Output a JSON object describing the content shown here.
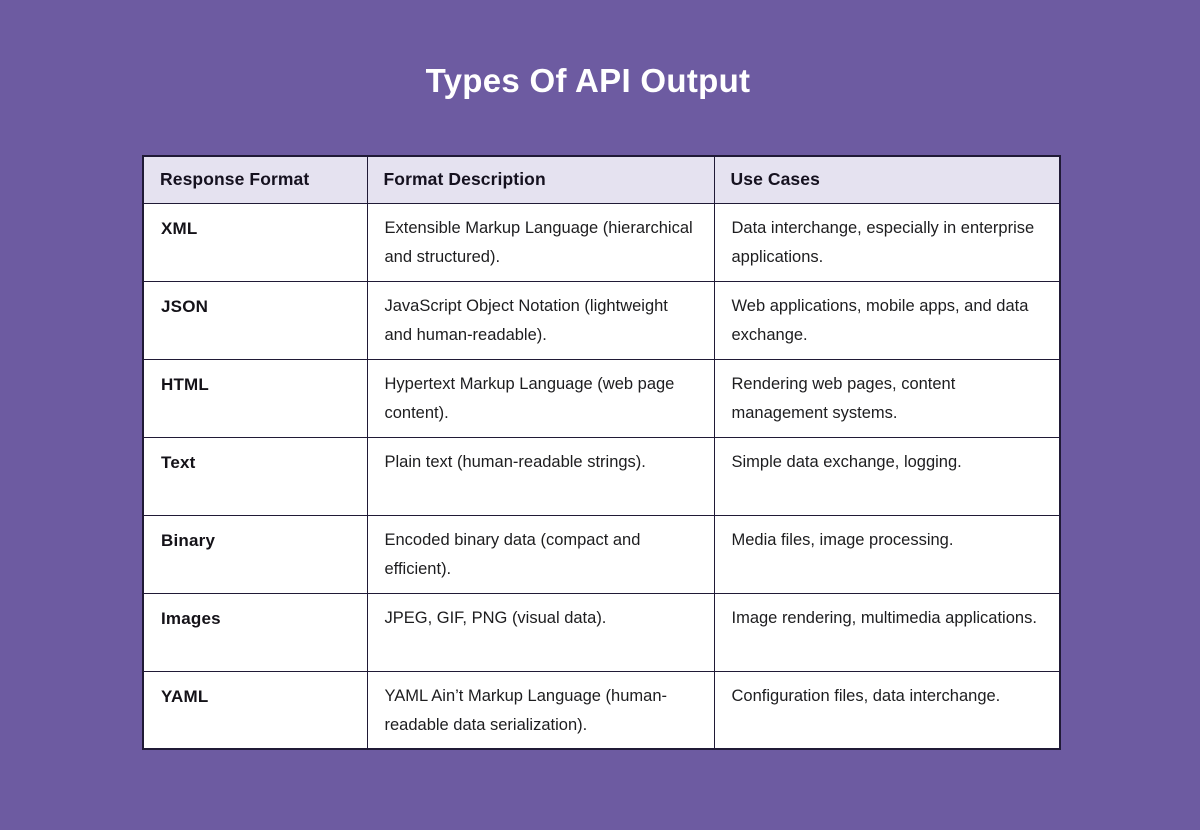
{
  "page": {
    "title": "Types Of API Output",
    "background_color": "#6d5ba1",
    "title_color": "#ffffff"
  },
  "table": {
    "colors": {
      "header_bg": "#e5e2f0",
      "body_bg": "#ffffff",
      "border": "#201a36",
      "header_text": "#15111f",
      "body_text": "#1d1d1f"
    },
    "headers": [
      "Response Format",
      "Format Description",
      "Use Cases"
    ],
    "rows": [
      {
        "format": "XML",
        "description": "Extensible Markup Language (hierarchical and structured).",
        "use_cases": "Data interchange, especially in enterprise applications."
      },
      {
        "format": "JSON",
        "description": "JavaScript Object Notation (lightweight and human-readable).",
        "use_cases": "Web applications, mobile apps, and data exchange."
      },
      {
        "format": "HTML",
        "description": "Hypertext Markup Language (web page content).",
        "use_cases": "Rendering web pages, content management systems."
      },
      {
        "format": "Text",
        "description": "Plain text (human-readable strings).",
        "use_cases": "Simple data exchange, logging."
      },
      {
        "format": "Binary",
        "description": "Encoded binary data (compact and efficient).",
        "use_cases": "Media files, image processing."
      },
      {
        "format": "Images",
        "description": "JPEG, GIF, PNG (visual data).",
        "use_cases": "Image rendering, multimedia applications."
      },
      {
        "format": "YAML",
        "description": "YAML Ain’t Markup Language (human-readable data serialization).",
        "use_cases": "Configuration files, data interchange."
      }
    ]
  },
  "chart_data": {
    "type": "table",
    "title": "Types Of API Output",
    "columns": [
      "Response Format",
      "Format Description",
      "Use Cases"
    ],
    "rows": [
      [
        "XML",
        "Extensible Markup Language (hierarchical and structured).",
        "Data interchange, especially in enterprise applications."
      ],
      [
        "JSON",
        "JavaScript Object Notation (lightweight and human-readable).",
        "Web applications, mobile apps, and data exchange."
      ],
      [
        "HTML",
        "Hypertext Markup Language (web page content).",
        "Rendering web pages, content management systems."
      ],
      [
        "Text",
        "Plain text (human-readable strings).",
        "Simple data exchange, logging."
      ],
      [
        "Binary",
        "Encoded binary data (compact and efficient).",
        "Media files, image processing."
      ],
      [
        "Images",
        "JPEG, GIF, PNG (visual data).",
        "Image rendering, multimedia applications."
      ],
      [
        "YAML",
        "YAML Ain’t Markup Language (human-readable data serialization).",
        "Configuration files, data interchange."
      ]
    ]
  }
}
